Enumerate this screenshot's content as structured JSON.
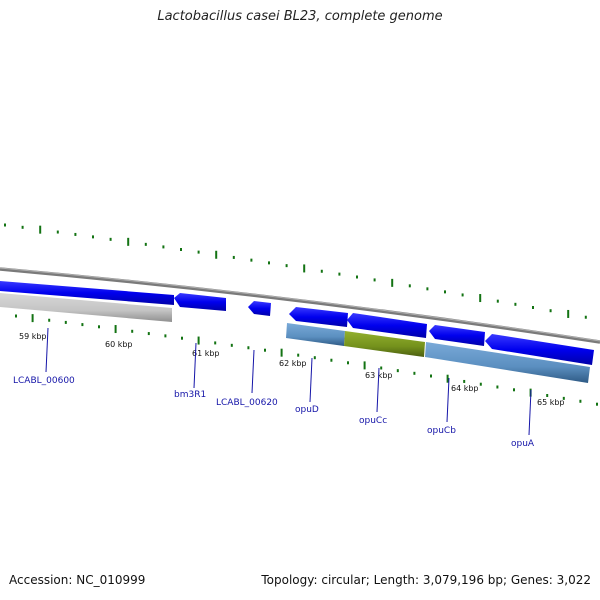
{
  "title": "Lactobacillus casei BL23, complete genome",
  "footer": {
    "accession": "Accession: NC_010999",
    "summary": "Topology: circular; Length: 3,079,196 bp; Genes: 3,022"
  },
  "colors": {
    "cds": "#1010e8",
    "gene_blue": "#5b8fc0",
    "gene_green": "#74911c",
    "gene_gray": "#c4c4c4",
    "backbone": "#808080",
    "tick": "#137313",
    "label": "#1515a8"
  },
  "ticks": [
    {
      "label": "59 kbp"
    },
    {
      "label": "60 kbp"
    },
    {
      "label": "61 kbp"
    },
    {
      "label": "62 kbp"
    },
    {
      "label": "63 kbp"
    },
    {
      "label": "64 kbp"
    },
    {
      "label": "65 kbp"
    }
  ],
  "genes": [
    {
      "name": "LCABL_00600"
    },
    {
      "name": "bm3R1"
    },
    {
      "name": "LCABL_00620"
    },
    {
      "name": "opuD"
    },
    {
      "name": "opuCc"
    },
    {
      "name": "opuCb"
    },
    {
      "name": "opuA"
    }
  ]
}
